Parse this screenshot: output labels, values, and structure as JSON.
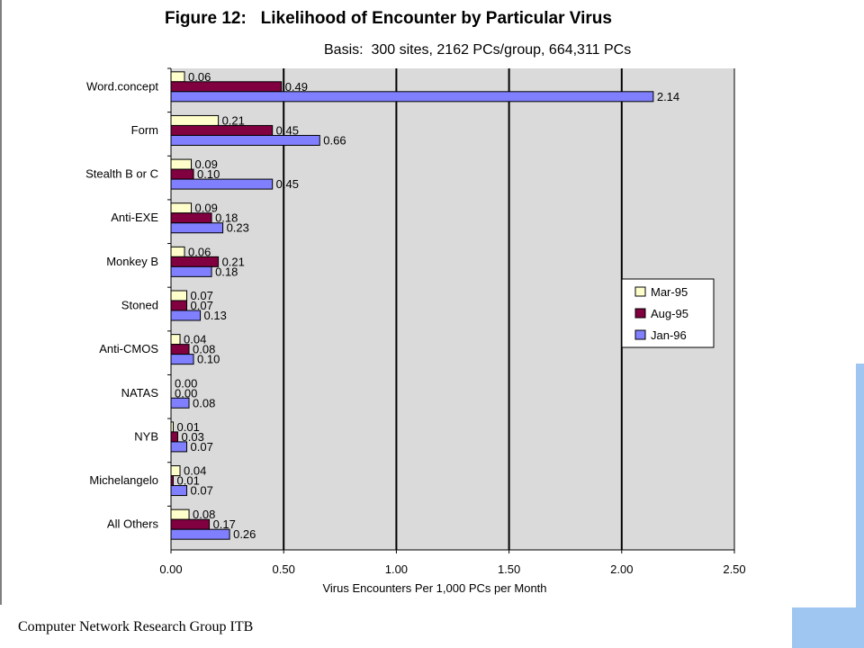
{
  "chart_data": {
    "type": "bar",
    "orientation": "horizontal",
    "title": "Figure 12:   Likelihood of Encounter by Particular Virus",
    "subtitle": "Basis:  300 sites, 2162 PCs/group, 664,311 PCs",
    "xlabel": "Virus Encounters Per 1,000 PCs per Month",
    "ylabel": "",
    "xlim": [
      0,
      2.5
    ],
    "xticks": [
      "0.00",
      "0.50",
      "1.00",
      "1.50",
      "2.00",
      "2.50"
    ],
    "grid": true,
    "legend_position": "right",
    "categories": [
      "Word.concept",
      "Form",
      "Stealth B or C",
      "Anti-EXE",
      "Monkey B",
      "Stoned",
      "Anti-CMOS",
      "NATAS",
      "NYB",
      "Michelangelo",
      "All Others"
    ],
    "series": [
      {
        "name": "Mar-95",
        "color": "#ffffcc",
        "values": [
          0.06,
          0.21,
          0.09,
          0.09,
          0.06,
          0.07,
          0.04,
          0.0,
          0.01,
          0.04,
          0.08
        ],
        "labels": [
          "0.06",
          "0.21",
          "0.09",
          "0.09",
          "0.06",
          "0.07",
          "0.04",
          "0.00",
          "0.01",
          "0.04",
          "0.08"
        ]
      },
      {
        "name": "Aug-95",
        "color": "#800040",
        "values": [
          0.49,
          0.45,
          0.1,
          0.18,
          0.21,
          0.07,
          0.08,
          0.0,
          0.03,
          0.01,
          0.17
        ],
        "labels": [
          "0.49",
          "0.45",
          "0.10",
          "0.18",
          "0.21",
          "0.07",
          "0.08",
          "0.00",
          "0.03",
          "0.01",
          "0.17"
        ]
      },
      {
        "name": "Jan-96",
        "color": "#8080ff",
        "values": [
          2.14,
          0.66,
          0.45,
          0.23,
          0.18,
          0.13,
          0.1,
          0.08,
          0.07,
          0.07,
          0.26
        ],
        "labels": [
          "2.14",
          "0.66",
          "0.45",
          "0.23",
          "0.18",
          "0.13",
          "0.10",
          "0.08",
          "0.07",
          "0.07",
          "0.26"
        ]
      }
    ],
    "colors": {
      "plot_background": "#dadada",
      "gridline": "#000000"
    }
  },
  "footer": {
    "text": "Computer Network Research Group ITB"
  }
}
